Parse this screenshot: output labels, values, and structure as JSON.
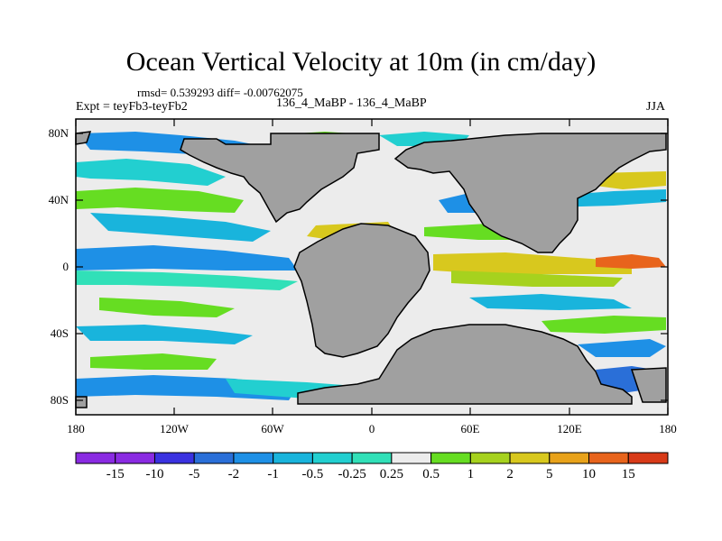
{
  "title": "Ocean Vertical Velocity at 10m (in cm/day)",
  "stats": "rmsd= 0.539293 diff= -0.00762075",
  "expt": "Expt = teyFb3-teyFb2",
  "run": "136_4_MaBP - 136_4_MaBP",
  "season": "JJA",
  "lat_labels": [
    "80N",
    "40N",
    "0",
    "40S",
    "80S"
  ],
  "lon_labels": [
    "180",
    "120W",
    "60W",
    "0",
    "60E",
    "120E",
    "180"
  ],
  "colorbar": {
    "labels": [
      "-15",
      "-10",
      "-5",
      "-2",
      "-1",
      "-0.5",
      "-0.25",
      "0.25",
      "0.5",
      "1",
      "2",
      "5",
      "10",
      "15"
    ],
    "colors": [
      "#8a2be2",
      "#3a32e0",
      "#2a6fd8",
      "#1e90e6",
      "#19b4dc",
      "#22cfd0",
      "#31e0b8",
      "#ececec",
      "#66dd22",
      "#a6d21e",
      "#d8c81e",
      "#e8a21a",
      "#e8641c",
      "#d83a18"
    ]
  },
  "colors": {
    "land": "#a0a0a0",
    "ocean": "#ececec"
  }
}
